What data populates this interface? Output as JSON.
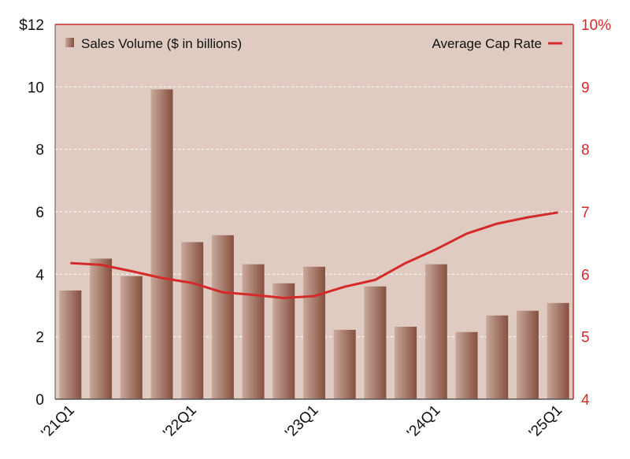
{
  "chart_data": {
    "type": "bar",
    "x_tick_labels": [
      "'21Q1",
      "'22Q1",
      "'23Q1",
      "'24Q1",
      "'25Q1"
    ],
    "x_tick_every": 4,
    "series": [
      {
        "name": "Sales Volume ($ in billions)",
        "type": "bar",
        "axis": "left",
        "values": [
          3.48,
          4.5,
          3.94,
          9.92,
          5.03,
          5.25,
          4.32,
          3.71,
          4.24,
          2.22,
          3.61,
          2.32,
          4.32,
          2.15,
          2.68,
          2.83,
          3.08
        ]
      },
      {
        "name": "Average Cap Rate",
        "type": "line",
        "axis": "right",
        "values": [
          6.18,
          6.15,
          6.05,
          5.94,
          5.86,
          5.71,
          5.67,
          5.62,
          5.65,
          5.8,
          5.91,
          6.18,
          6.4,
          6.65,
          6.81,
          6.91,
          6.99
        ]
      }
    ],
    "left_axis": {
      "ylim": [
        0,
        12
      ],
      "ticks": [
        "0",
        "2",
        "4",
        "6",
        "8",
        "10",
        "$12"
      ]
    },
    "right_axis": {
      "ylim": [
        4,
        10
      ],
      "ticks": [
        "4",
        "5",
        "6",
        "7",
        "8",
        "9",
        "10%"
      ]
    },
    "grid": "horizontal dashed",
    "legend": "top",
    "colors": {
      "background": "#dfcbc1",
      "bar_dark": "#8a5448",
      "bar_light": "#c8a69a",
      "line": "#d42a2a",
      "right_axis": "#d42a2a",
      "grid": "#ffffff"
    }
  }
}
